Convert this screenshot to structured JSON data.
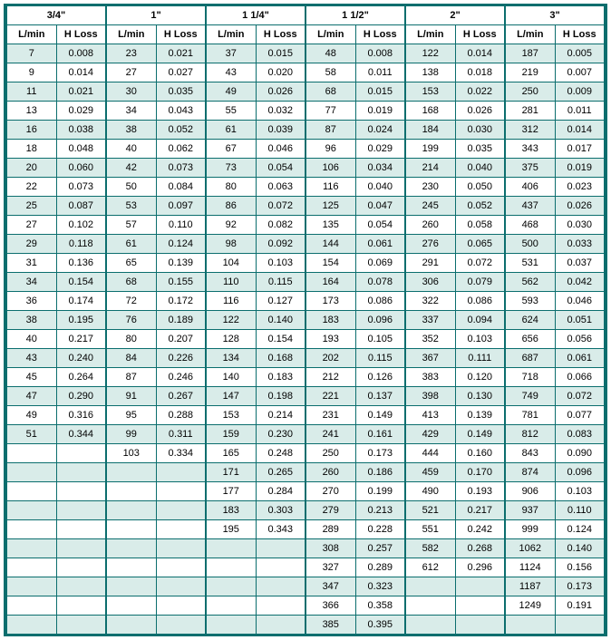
{
  "type": "table",
  "background_color": "#ffffff",
  "border_color": "#0b6e6e",
  "shade_color": "#d9ece9",
  "text_color": "#000000",
  "font_family": "Arial",
  "font_size": 11,
  "sizes": [
    "3/4\"",
    "1\"",
    "1 1/4\"",
    "1 1/2\"",
    "2\"",
    "3\""
  ],
  "sub_headers": [
    "L/min",
    "H Loss"
  ],
  "rows": [
    [
      [
        "7",
        "0.008"
      ],
      [
        "23",
        "0.021"
      ],
      [
        "37",
        "0.015"
      ],
      [
        "48",
        "0.008"
      ],
      [
        "122",
        "0.014"
      ],
      [
        "187",
        "0.005"
      ]
    ],
    [
      [
        "9",
        "0.014"
      ],
      [
        "27",
        "0.027"
      ],
      [
        "43",
        "0.020"
      ],
      [
        "58",
        "0.011"
      ],
      [
        "138",
        "0.018"
      ],
      [
        "219",
        "0.007"
      ]
    ],
    [
      [
        "11",
        "0.021"
      ],
      [
        "30",
        "0.035"
      ],
      [
        "49",
        "0.026"
      ],
      [
        "68",
        "0.015"
      ],
      [
        "153",
        "0.022"
      ],
      [
        "250",
        "0.009"
      ]
    ],
    [
      [
        "13",
        "0.029"
      ],
      [
        "34",
        "0.043"
      ],
      [
        "55",
        "0.032"
      ],
      [
        "77",
        "0.019"
      ],
      [
        "168",
        "0.026"
      ],
      [
        "281",
        "0.011"
      ]
    ],
    [
      [
        "16",
        "0.038"
      ],
      [
        "38",
        "0.052"
      ],
      [
        "61",
        "0.039"
      ],
      [
        "87",
        "0.024"
      ],
      [
        "184",
        "0.030"
      ],
      [
        "312",
        "0.014"
      ]
    ],
    [
      [
        "18",
        "0.048"
      ],
      [
        "40",
        "0.062"
      ],
      [
        "67",
        "0.046"
      ],
      [
        "96",
        "0.029"
      ],
      [
        "199",
        "0.035"
      ],
      [
        "343",
        "0.017"
      ]
    ],
    [
      [
        "20",
        "0.060"
      ],
      [
        "42",
        "0.073"
      ],
      [
        "73",
        "0.054"
      ],
      [
        "106",
        "0.034"
      ],
      [
        "214",
        "0.040"
      ],
      [
        "375",
        "0.019"
      ]
    ],
    [
      [
        "22",
        "0.073"
      ],
      [
        "50",
        "0.084"
      ],
      [
        "80",
        "0.063"
      ],
      [
        "116",
        "0.040"
      ],
      [
        "230",
        "0.050"
      ],
      [
        "406",
        "0.023"
      ]
    ],
    [
      [
        "25",
        "0.087"
      ],
      [
        "53",
        "0.097"
      ],
      [
        "86",
        "0.072"
      ],
      [
        "125",
        "0.047"
      ],
      [
        "245",
        "0.052"
      ],
      [
        "437",
        "0.026"
      ]
    ],
    [
      [
        "27",
        "0.102"
      ],
      [
        "57",
        "0.110"
      ],
      [
        "92",
        "0.082"
      ],
      [
        "135",
        "0.054"
      ],
      [
        "260",
        "0.058"
      ],
      [
        "468",
        "0.030"
      ]
    ],
    [
      [
        "29",
        "0.118"
      ],
      [
        "61",
        "0.124"
      ],
      [
        "98",
        "0.092"
      ],
      [
        "144",
        "0.061"
      ],
      [
        "276",
        "0.065"
      ],
      [
        "500",
        "0.033"
      ]
    ],
    [
      [
        "31",
        "0.136"
      ],
      [
        "65",
        "0.139"
      ],
      [
        "104",
        "0.103"
      ],
      [
        "154",
        "0.069"
      ],
      [
        "291",
        "0.072"
      ],
      [
        "531",
        "0.037"
      ]
    ],
    [
      [
        "34",
        "0.154"
      ],
      [
        "68",
        "0.155"
      ],
      [
        "110",
        "0.115"
      ],
      [
        "164",
        "0.078"
      ],
      [
        "306",
        "0.079"
      ],
      [
        "562",
        "0.042"
      ]
    ],
    [
      [
        "36",
        "0.174"
      ],
      [
        "72",
        "0.172"
      ],
      [
        "116",
        "0.127"
      ],
      [
        "173",
        "0.086"
      ],
      [
        "322",
        "0.086"
      ],
      [
        "593",
        "0.046"
      ]
    ],
    [
      [
        "38",
        "0.195"
      ],
      [
        "76",
        "0.189"
      ],
      [
        "122",
        "0.140"
      ],
      [
        "183",
        "0.096"
      ],
      [
        "337",
        "0.094"
      ],
      [
        "624",
        "0.051"
      ]
    ],
    [
      [
        "40",
        "0.217"
      ],
      [
        "80",
        "0.207"
      ],
      [
        "128",
        "0.154"
      ],
      [
        "193",
        "0.105"
      ],
      [
        "352",
        "0.103"
      ],
      [
        "656",
        "0.056"
      ]
    ],
    [
      [
        "43",
        "0.240"
      ],
      [
        "84",
        "0.226"
      ],
      [
        "134",
        "0.168"
      ],
      [
        "202",
        "0.115"
      ],
      [
        "367",
        "0.111"
      ],
      [
        "687",
        "0.061"
      ]
    ],
    [
      [
        "45",
        "0.264"
      ],
      [
        "87",
        "0.246"
      ],
      [
        "140",
        "0.183"
      ],
      [
        "212",
        "0.126"
      ],
      [
        "383",
        "0.120"
      ],
      [
        "718",
        "0.066"
      ]
    ],
    [
      [
        "47",
        "0.290"
      ],
      [
        "91",
        "0.267"
      ],
      [
        "147",
        "0.198"
      ],
      [
        "221",
        "0.137"
      ],
      [
        "398",
        "0.130"
      ],
      [
        "749",
        "0.072"
      ]
    ],
    [
      [
        "49",
        "0.316"
      ],
      [
        "95",
        "0.288"
      ],
      [
        "153",
        "0.214"
      ],
      [
        "231",
        "0.149"
      ],
      [
        "413",
        "0.139"
      ],
      [
        "781",
        "0.077"
      ]
    ],
    [
      [
        "51",
        "0.344"
      ],
      [
        "99",
        "0.311"
      ],
      [
        "159",
        "0.230"
      ],
      [
        "241",
        "0.161"
      ],
      [
        "429",
        "0.149"
      ],
      [
        "812",
        "0.083"
      ]
    ],
    [
      [
        "",
        ""
      ],
      [
        "103",
        "0.334"
      ],
      [
        "165",
        "0.248"
      ],
      [
        "250",
        "0.173"
      ],
      [
        "444",
        "0.160"
      ],
      [
        "843",
        "0.090"
      ]
    ],
    [
      [
        "",
        ""
      ],
      [
        "",
        ""
      ],
      [
        "171",
        "0.265"
      ],
      [
        "260",
        "0.186"
      ],
      [
        "459",
        "0.170"
      ],
      [
        "874",
        "0.096"
      ]
    ],
    [
      [
        "",
        ""
      ],
      [
        "",
        ""
      ],
      [
        "177",
        "0.284"
      ],
      [
        "270",
        "0.199"
      ],
      [
        "490",
        "0.193"
      ],
      [
        "906",
        "0.103"
      ]
    ],
    [
      [
        "",
        ""
      ],
      [
        "",
        ""
      ],
      [
        "183",
        "0.303"
      ],
      [
        "279",
        "0.213"
      ],
      [
        "521",
        "0.217"
      ],
      [
        "937",
        "0.110"
      ]
    ],
    [
      [
        "",
        ""
      ],
      [
        "",
        ""
      ],
      [
        "195",
        "0.343"
      ],
      [
        "289",
        "0.228"
      ],
      [
        "551",
        "0.242"
      ],
      [
        "999",
        "0.124"
      ]
    ],
    [
      [
        "",
        ""
      ],
      [
        "",
        ""
      ],
      [
        "",
        ""
      ],
      [
        "308",
        "0.257"
      ],
      [
        "582",
        "0.268"
      ],
      [
        "1062",
        "0.140"
      ]
    ],
    [
      [
        "",
        ""
      ],
      [
        "",
        ""
      ],
      [
        "",
        ""
      ],
      [
        "327",
        "0.289"
      ],
      [
        "612",
        "0.296"
      ],
      [
        "1124",
        "0.156"
      ]
    ],
    [
      [
        "",
        ""
      ],
      [
        "",
        ""
      ],
      [
        "",
        ""
      ],
      [
        "347",
        "0.323"
      ],
      [
        "",
        ""
      ],
      [
        "1187",
        "0.173"
      ]
    ],
    [
      [
        "",
        ""
      ],
      [
        "",
        ""
      ],
      [
        "",
        ""
      ],
      [
        "366",
        "0.358"
      ],
      [
        "",
        ""
      ],
      [
        "1249",
        "0.191"
      ]
    ],
    [
      [
        "",
        ""
      ],
      [
        "",
        ""
      ],
      [
        "",
        ""
      ],
      [
        "385",
        "0.395"
      ],
      [
        "",
        ""
      ],
      [
        "",
        ""
      ]
    ]
  ]
}
